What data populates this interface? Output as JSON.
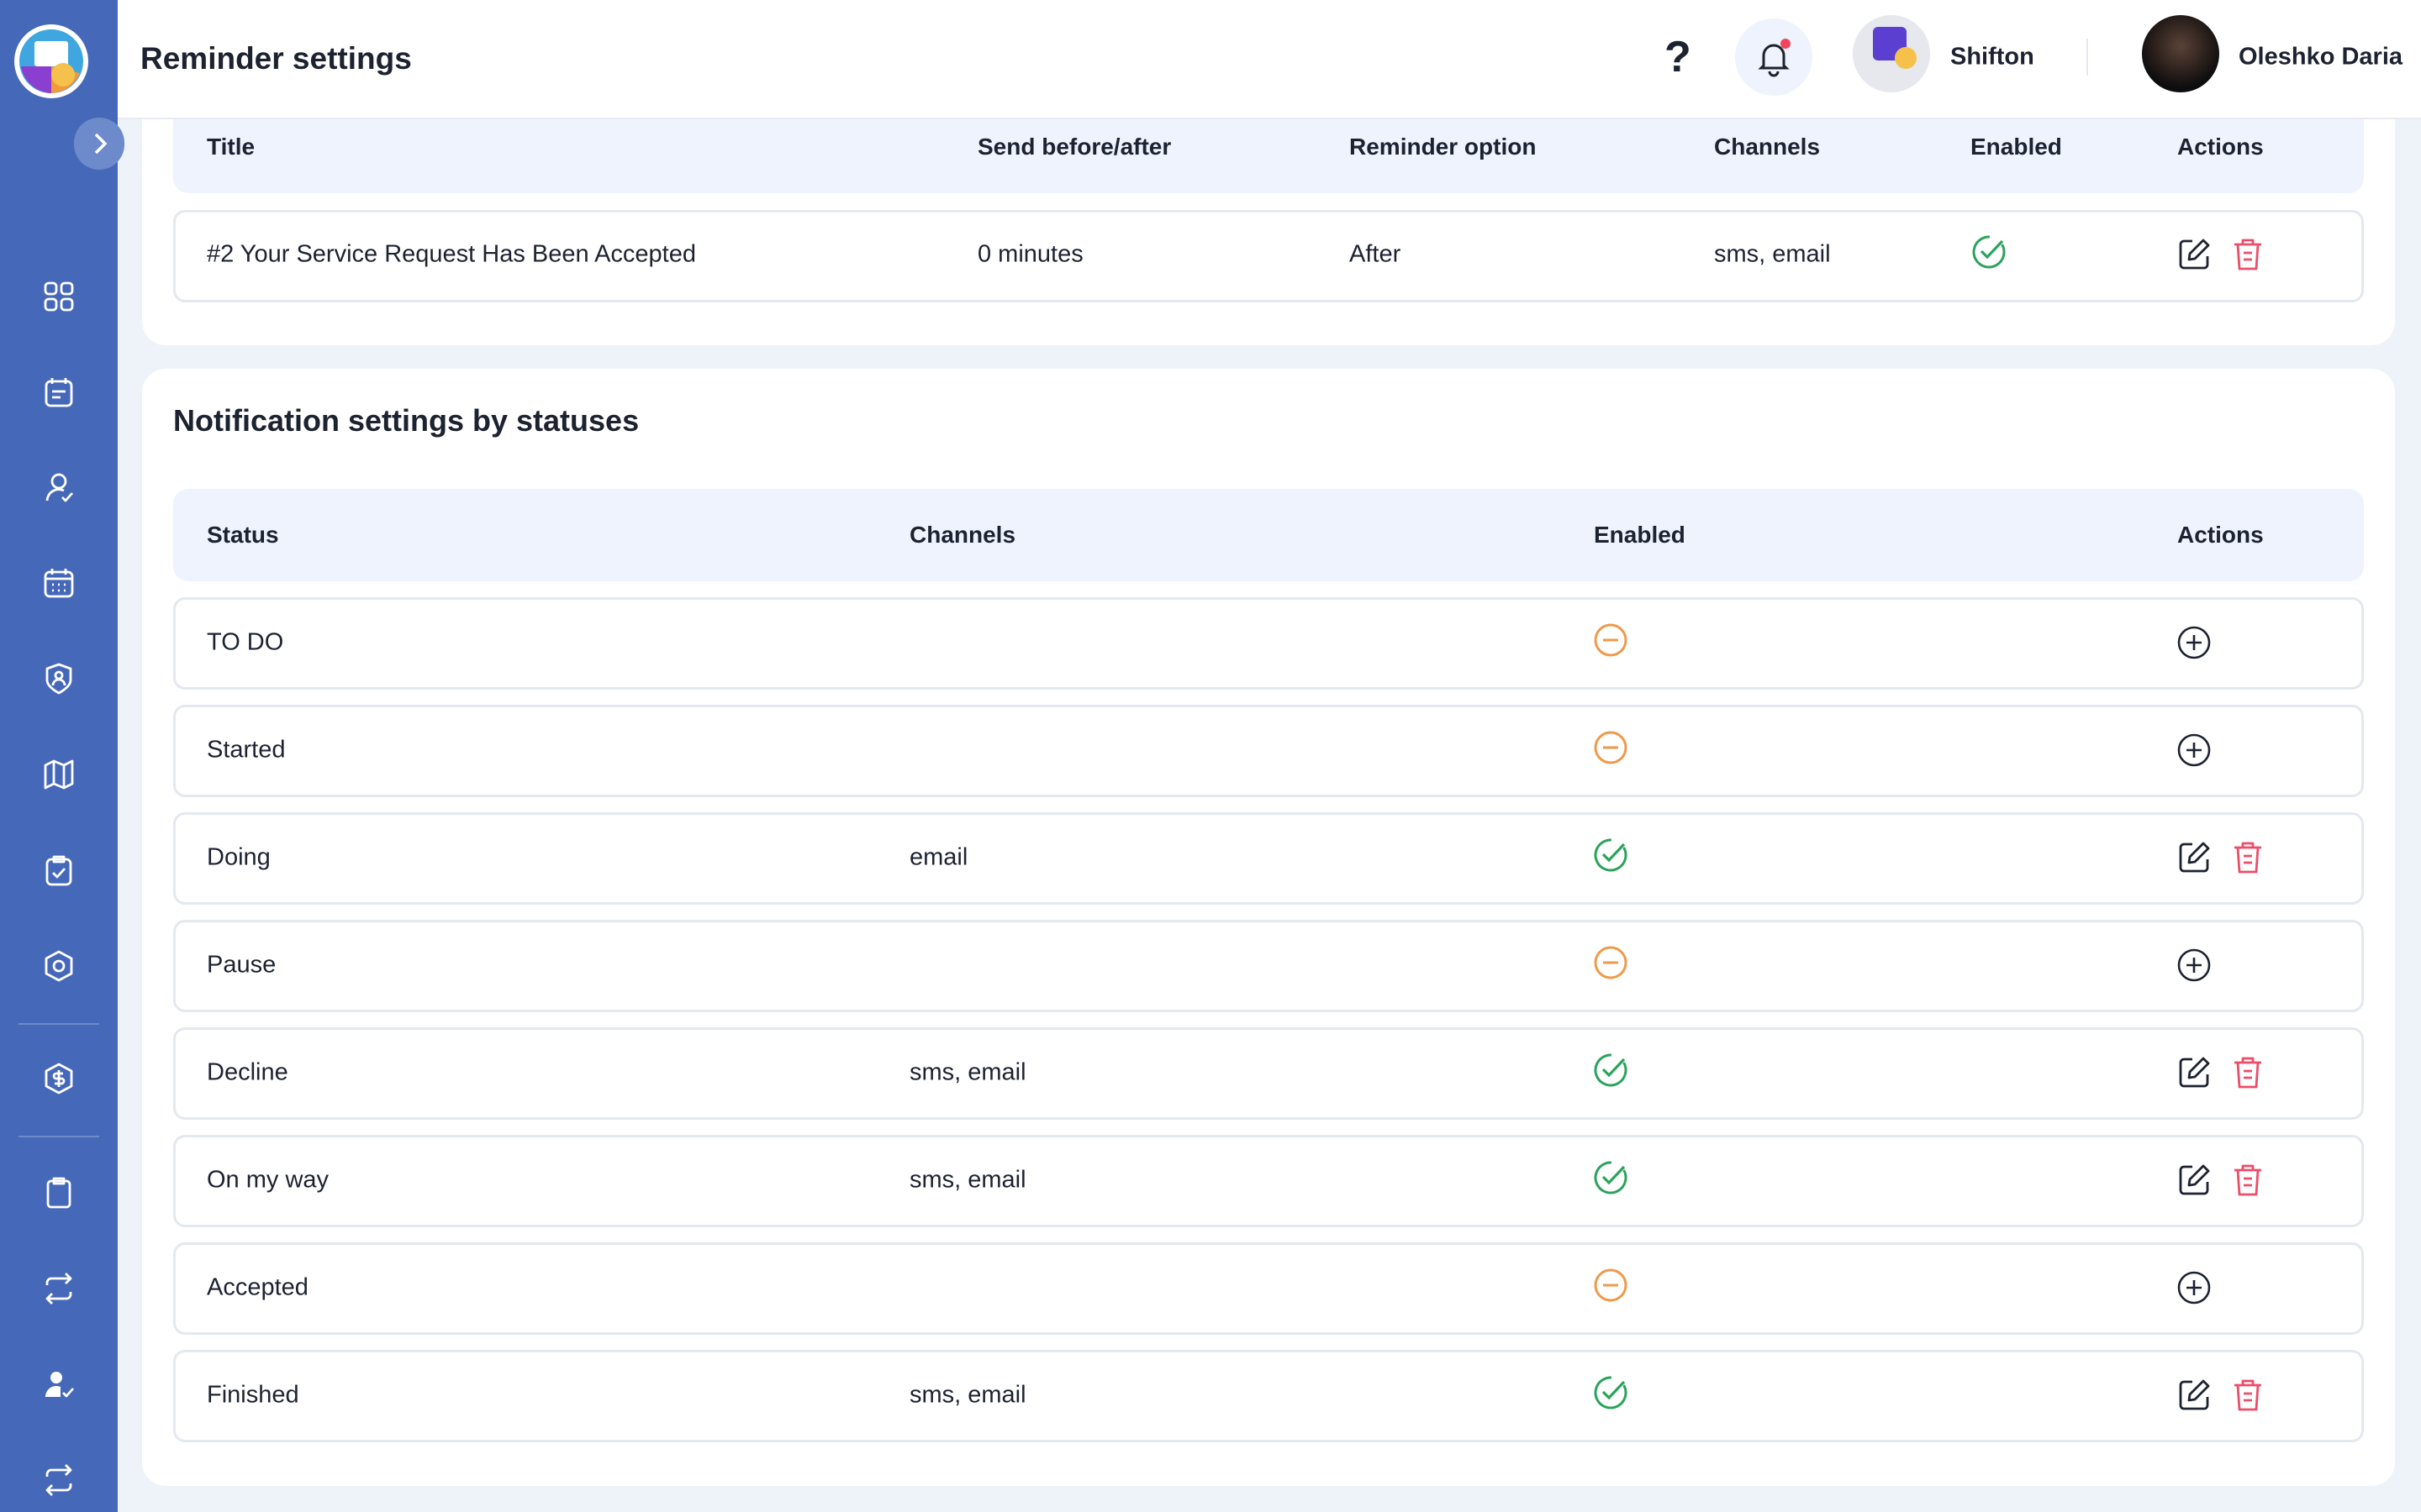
{
  "header": {
    "title": "Reminder settings",
    "help": "?",
    "company": "Shifton",
    "user": "Oleshko Daria"
  },
  "reminders": {
    "columns": [
      "Title",
      "Send before/after",
      "Reminder option",
      "Channels",
      "Enabled",
      "Actions"
    ],
    "rows": [
      {
        "title": "#2 Your Service Request Has Been Accepted",
        "send": "0 minutes",
        "option": "After",
        "channels": "sms, email",
        "enabled": true
      }
    ]
  },
  "statuses": {
    "title": "Notification settings by statuses",
    "columns": [
      "Status",
      "Channels",
      "Enabled",
      "Actions"
    ],
    "rows": [
      {
        "status": "TO DO",
        "enabled": false
      },
      {
        "status": "Started",
        "enabled": false
      },
      {
        "status": "Doing",
        "channels": "email",
        "enabled": true
      },
      {
        "status": "Pause",
        "enabled": false
      },
      {
        "status": "Decline",
        "channels": "sms, email",
        "enabled": true
      },
      {
        "status": "On my way",
        "channels": "sms, email",
        "enabled": true
      },
      {
        "status": "Accepted",
        "enabled": false
      },
      {
        "status": "Finished",
        "channels": "sms, email",
        "enabled": true
      }
    ]
  }
}
